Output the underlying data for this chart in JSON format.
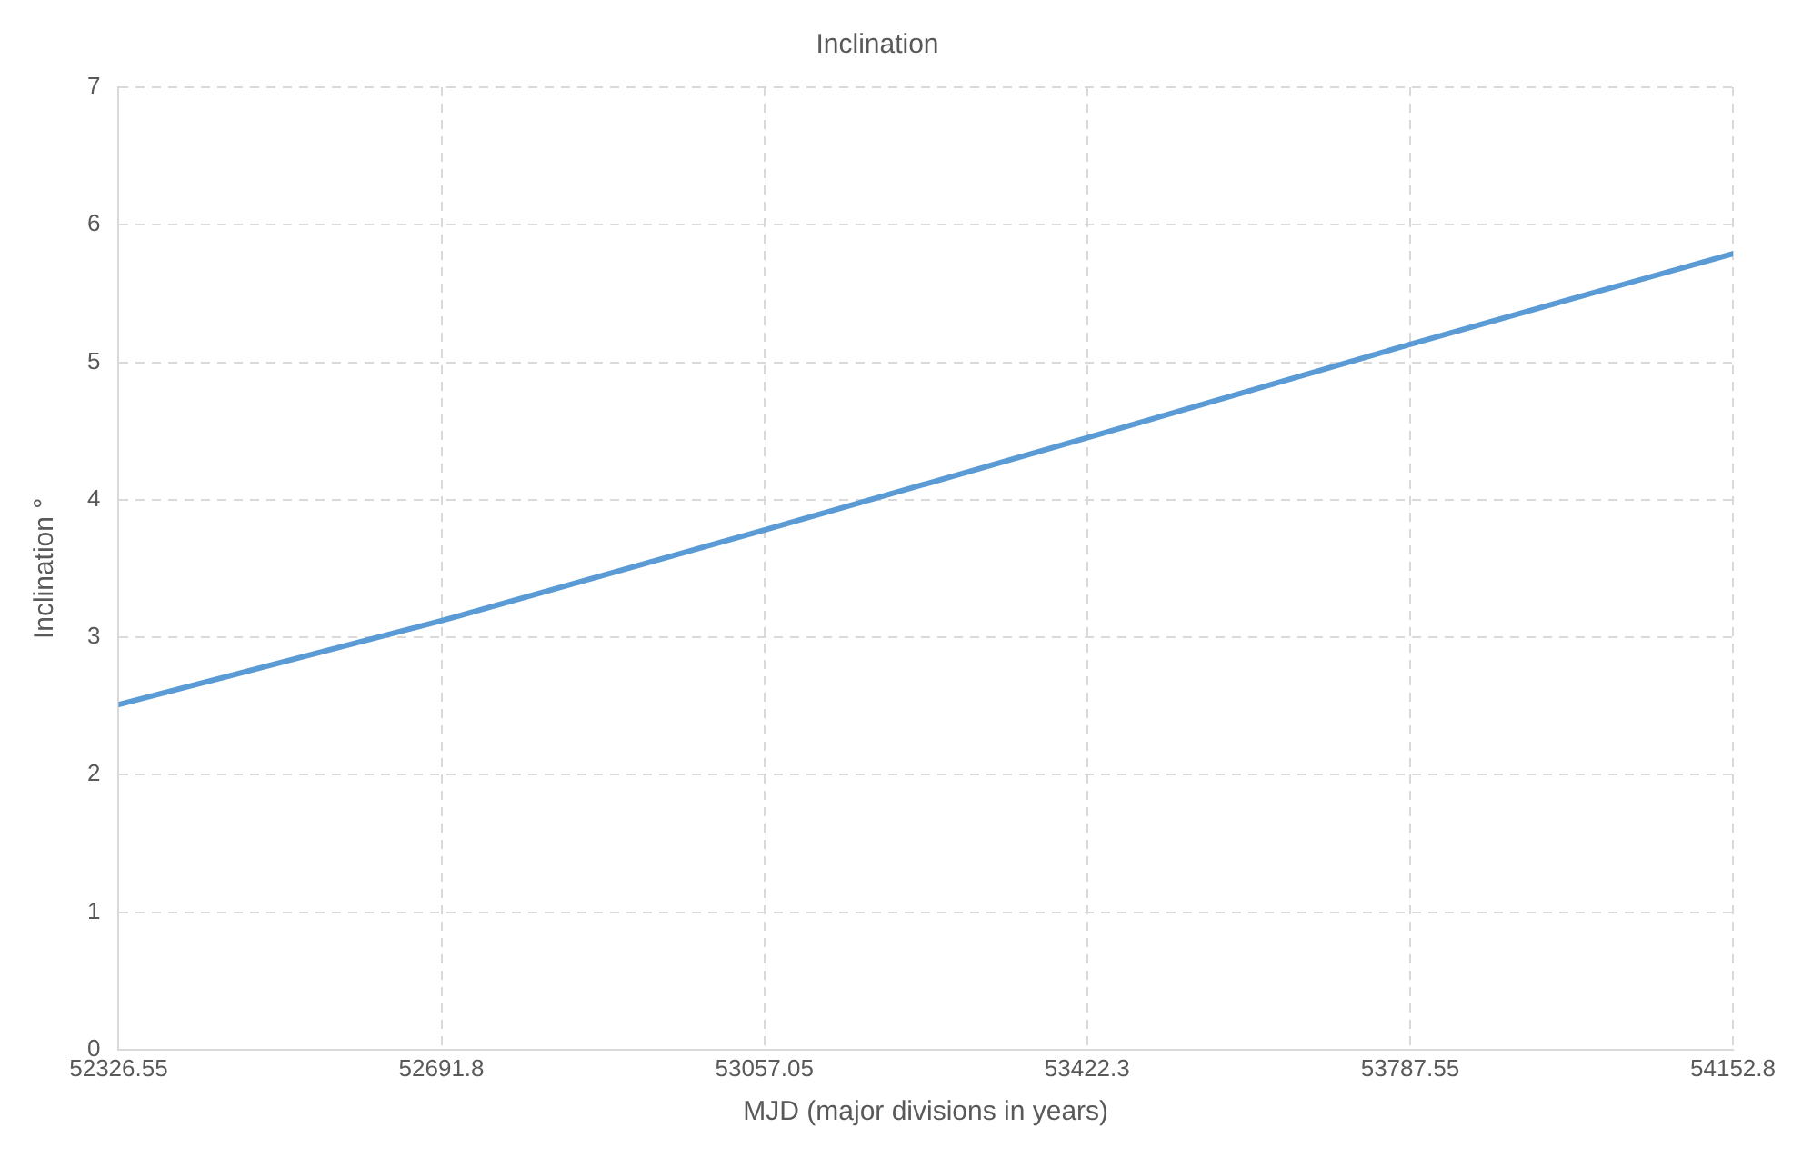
{
  "chart_data": {
    "type": "line",
    "title": "Inclination",
    "xlabel": "MJD (major divisions in years)",
    "ylabel": "Inclination °",
    "x": [
      52326.55,
      52691.8,
      53057.05,
      53422.3,
      53787.55,
      54152.8
    ],
    "series": [
      {
        "color": "#5b9bd5",
        "values": [
          2.51,
          3.12,
          3.78,
          4.45,
          5.13,
          5.79
        ]
      }
    ],
    "xlim": [
      52326.55,
      54152.8
    ],
    "xticks": [
      52326.55,
      52691.8,
      53057.05,
      53422.3,
      53787.55,
      54152.8
    ],
    "ylim": [
      0,
      7
    ],
    "yticks": [
      0,
      1,
      2,
      3,
      4,
      5,
      6,
      7
    ],
    "grid": true,
    "legend": false,
    "marker": "none",
    "line_style": "solid"
  }
}
